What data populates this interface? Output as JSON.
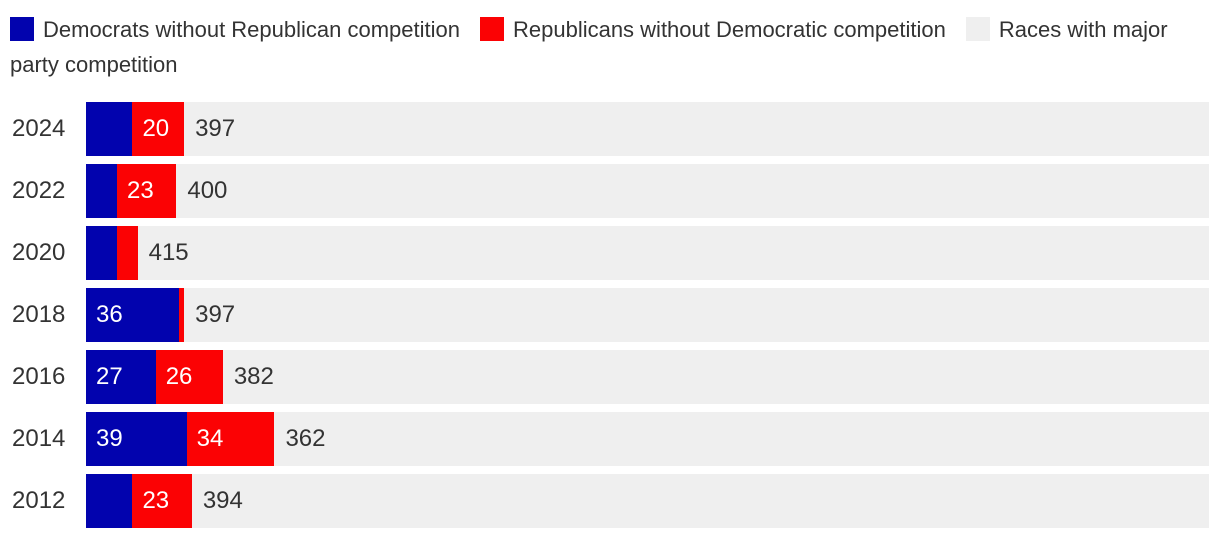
{
  "colors": {
    "democrat": "#0203ae",
    "republican": "#fb0204",
    "competitive": "#efefef",
    "text": "#333333",
    "bar_label_light": "#ffffff",
    "background": "#ffffff"
  },
  "legend": {
    "items": [
      {
        "key": "democrat",
        "label": "Democrats without Republican competition"
      },
      {
        "key": "republican",
        "label": "Republicans without Democratic competition"
      },
      {
        "key": "competitive",
        "label": "Races with major party competition"
      }
    ]
  },
  "chart_data": {
    "type": "bar",
    "orientation": "horizontal",
    "stacked": true,
    "total_per_row": 435,
    "legend_position": "top",
    "axis": "none",
    "categories": [
      "2024",
      "2022",
      "2020",
      "2018",
      "2016",
      "2014",
      "2012"
    ],
    "series": [
      {
        "name": "Democrats without Republican competition",
        "color_key": "democrat",
        "values": [
          18,
          12,
          12,
          36,
          27,
          39,
          18
        ]
      },
      {
        "name": "Republicans without Democratic competition",
        "color_key": "republican",
        "values": [
          20,
          23,
          8,
          2,
          26,
          34,
          23
        ]
      },
      {
        "name": "Races with major party competition",
        "color_key": "competitive",
        "values": [
          397,
          400,
          415,
          397,
          382,
          362,
          394
        ]
      }
    ],
    "visible_segment_labels": [
      {
        "dem": "",
        "rep": "20",
        "comp": "397"
      },
      {
        "dem": "",
        "rep": "23",
        "comp": "400"
      },
      {
        "dem": "",
        "rep": "",
        "comp": "415"
      },
      {
        "dem": "36",
        "rep": "",
        "comp": "397"
      },
      {
        "dem": "27",
        "rep": "26",
        "comp": "382"
      },
      {
        "dem": "39",
        "rep": "34",
        "comp": "362"
      },
      {
        "dem": "",
        "rep": "23",
        "comp": "394"
      }
    ]
  }
}
